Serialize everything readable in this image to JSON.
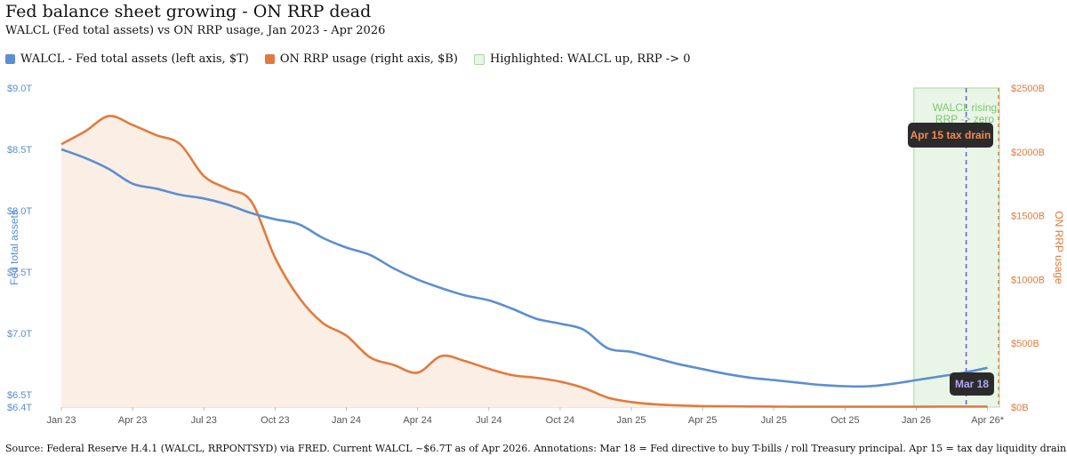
{
  "title": "Fed balance sheet growing - ON RRP dead",
  "subtitle": "WALCL (Fed total assets) vs ON RRP usage, Jan 2023 - Apr 2026",
  "legend": {
    "walcl": "WALCL - Fed total assets (left axis, $T)",
    "rrp": "ON RRP usage (right axis, $B)",
    "highlight": "Highlighted: WALCL up, RRP -> 0"
  },
  "source": "Source: Federal Reserve H.4.1 (WALCL, RRPONTSYD) via FRED. Current WALCL ~$6.7T as of Apr 2026. Annotations: Mar 18 = Fed directive to buy T-bills / roll Treasury principal. Apr 15 = tax day liquidity drain.",
  "colors": {
    "walcl": "#5b8fd0",
    "rrp": "#e07b3f",
    "rrp_fill": "#fbeee4",
    "highlight_fill": "#e9f5e6",
    "highlight_border": "#a9d6a1",
    "highlight_text": "#7bc86f",
    "mar18_line": "#6b5bd6"
  },
  "chart_data": {
    "type": "line",
    "x_range": [
      0,
      39.5
    ],
    "x_ticks": [
      {
        "x": 0,
        "label": "Jan 23"
      },
      {
        "x": 3,
        "label": "Apr 23"
      },
      {
        "x": 6,
        "label": "Jul 23"
      },
      {
        "x": 9,
        "label": "Oct 23"
      },
      {
        "x": 12,
        "label": "Jan 24"
      },
      {
        "x": 15,
        "label": "Apr 24"
      },
      {
        "x": 18,
        "label": "Jul 24"
      },
      {
        "x": 21,
        "label": "Oct 24"
      },
      {
        "x": 24,
        "label": "Jan 25"
      },
      {
        "x": 27,
        "label": "Apr 25"
      },
      {
        "x": 30,
        "label": "Jul 25"
      },
      {
        "x": 33,
        "label": "Oct 25"
      },
      {
        "x": 36,
        "label": "Jan 26"
      },
      {
        "x": 39,
        "label": "Apr 26*"
      }
    ],
    "y_left": {
      "label": "Fed total assets",
      "unit": "$T",
      "range": [
        6.4,
        9.0
      ],
      "ticks": [
        {
          "v": 9.0,
          "label": "$9.0T"
        },
        {
          "v": 8.5,
          "label": "$8.5T"
        },
        {
          "v": 8.0,
          "label": "$8.0T"
        },
        {
          "v": 7.5,
          "label": "$7.5T"
        },
        {
          "v": 7.0,
          "label": "$7.0T"
        },
        {
          "v": 6.5,
          "label": "$6.5T"
        },
        {
          "v": 6.4,
          "label": "$6.4T"
        }
      ]
    },
    "y_right": {
      "label": "ON RRP usage",
      "unit": "$B",
      "range": [
        0,
        2500
      ],
      "ticks": [
        {
          "v": 2500,
          "label": "$2500B"
        },
        {
          "v": 2000,
          "label": "$2000B"
        },
        {
          "v": 1500,
          "label": "$1500B"
        },
        {
          "v": 1000,
          "label": "$1000B"
        },
        {
          "v": 500,
          "label": "$500B"
        },
        {
          "v": 0,
          "label": "$0B"
        }
      ]
    },
    "series": [
      {
        "name": "WALCL - Fed total assets (left axis, $T)",
        "axis": "left",
        "points": [
          [
            0,
            8.5
          ],
          [
            1,
            8.43
          ],
          [
            2,
            8.34
          ],
          [
            3,
            8.22
          ],
          [
            4,
            8.18
          ],
          [
            5,
            8.13
          ],
          [
            6,
            8.1
          ],
          [
            7,
            8.05
          ],
          [
            8,
            7.98
          ],
          [
            9,
            7.93
          ],
          [
            10,
            7.89
          ],
          [
            11,
            7.78
          ],
          [
            12,
            7.7
          ],
          [
            13,
            7.64
          ],
          [
            14,
            7.53
          ],
          [
            15,
            7.44
          ],
          [
            16,
            7.37
          ],
          [
            17,
            7.31
          ],
          [
            18,
            7.27
          ],
          [
            19,
            7.2
          ],
          [
            20,
            7.12
          ],
          [
            21,
            7.08
          ],
          [
            22,
            7.03
          ],
          [
            23,
            6.88
          ],
          [
            24,
            6.85
          ],
          [
            25,
            6.8
          ],
          [
            26,
            6.75
          ],
          [
            27,
            6.71
          ],
          [
            28,
            6.67
          ],
          [
            29,
            6.64
          ],
          [
            30,
            6.62
          ],
          [
            31,
            6.6
          ],
          [
            32,
            6.58
          ],
          [
            33,
            6.57
          ],
          [
            34,
            6.57
          ],
          [
            35,
            6.59
          ],
          [
            36,
            6.62
          ],
          [
            37,
            6.65
          ],
          [
            38,
            6.68
          ],
          [
            39,
            6.72
          ]
        ]
      },
      {
        "name": "ON RRP usage (right axis, $B)",
        "axis": "right",
        "points": [
          [
            0,
            2060
          ],
          [
            1,
            2160
          ],
          [
            2,
            2280
          ],
          [
            3,
            2210
          ],
          [
            4,
            2130
          ],
          [
            5,
            2060
          ],
          [
            6,
            1810
          ],
          [
            7,
            1710
          ],
          [
            8,
            1610
          ],
          [
            9,
            1170
          ],
          [
            10,
            860
          ],
          [
            11,
            660
          ],
          [
            12,
            560
          ],
          [
            13,
            390
          ],
          [
            14,
            330
          ],
          [
            15,
            270
          ],
          [
            16,
            400
          ],
          [
            17,
            360
          ],
          [
            18,
            300
          ],
          [
            19,
            250
          ],
          [
            20,
            230
          ],
          [
            21,
            200
          ],
          [
            22,
            150
          ],
          [
            23,
            75
          ],
          [
            24,
            40
          ],
          [
            25,
            22
          ],
          [
            26,
            13
          ],
          [
            27,
            8
          ],
          [
            28,
            6
          ],
          [
            29,
            5
          ],
          [
            30,
            4
          ],
          [
            31,
            3
          ],
          [
            32,
            3
          ],
          [
            33,
            3
          ],
          [
            34,
            3
          ],
          [
            35,
            3
          ],
          [
            36,
            3
          ],
          [
            37,
            4
          ],
          [
            38,
            4
          ],
          [
            39,
            4
          ]
        ]
      }
    ],
    "highlight_region": {
      "x_start": 35.9,
      "x_end": 39.5,
      "label_lines": [
        "WALCL rising",
        "RRP -> zero"
      ]
    },
    "annotations": [
      {
        "label": "Mar 18",
        "x": 38.1,
        "style": "dashed-line"
      },
      {
        "label": "Apr 15 tax drain",
        "x": 39.5,
        "style": "dashed-line"
      }
    ]
  }
}
